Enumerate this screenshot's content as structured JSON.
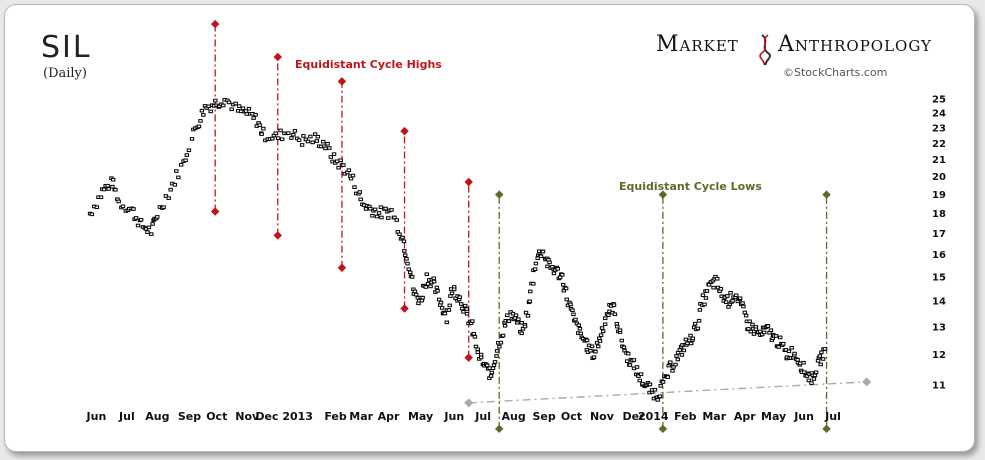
{
  "chart_data": {
    "type": "scatter",
    "title": "SIL",
    "subtitle": "(Daily)",
    "brand": {
      "left": "Market",
      "right": "Anthropology",
      "credit": "©StockCharts.com"
    },
    "y_scale": "log",
    "ylim": [
      10.5,
      25.7
    ],
    "yticks": [
      11,
      12,
      13,
      14,
      15,
      16,
      17,
      18,
      19,
      20,
      21,
      22,
      23,
      24,
      25
    ],
    "x_range_months": [
      0,
      25.3
    ],
    "x_ticks": [
      {
        "label": "Jun",
        "m": 0.2
      },
      {
        "label": "Jul",
        "m": 1.15
      },
      {
        "label": "Aug",
        "m": 2.1
      },
      {
        "label": "Sep",
        "m": 3.1
      },
      {
        "label": "Oct",
        "m": 3.95
      },
      {
        "label": "Nov",
        "m": 4.9
      },
      {
        "label": "Dec 2013",
        "m": 6.05
      },
      {
        "label": "Feb",
        "m": 7.65
      },
      {
        "label": "Mar",
        "m": 8.45
      },
      {
        "label": "Apr",
        "m": 9.3
      },
      {
        "label": "May",
        "m": 10.3
      },
      {
        "label": "Jun",
        "m": 11.35
      },
      {
        "label": "Jul",
        "m": 12.25
      },
      {
        "label": "Aug",
        "m": 13.2
      },
      {
        "label": "Sep",
        "m": 14.15
      },
      {
        "label": "Oct",
        "m": 15.0
      },
      {
        "label": "Nov",
        "m": 15.95
      },
      {
        "label": "Dec",
        "m": 16.95
      },
      {
        "label": "2014",
        "m": 17.55
      },
      {
        "label": "Feb",
        "m": 18.55
      },
      {
        "label": "Mar",
        "m": 19.45
      },
      {
        "label": "Apr",
        "m": 20.4
      },
      {
        "label": "May",
        "m": 21.3
      },
      {
        "label": "Jun",
        "m": 22.25
      },
      {
        "label": "Jul",
        "m": 23.15
      }
    ],
    "series": [
      {
        "name": "SIL daily close",
        "anchors": [
          [
            0.0,
            18.0
          ],
          [
            0.4,
            19.2
          ],
          [
            0.7,
            19.7
          ],
          [
            0.9,
            18.6
          ],
          [
            1.3,
            18.2
          ],
          [
            1.6,
            17.4
          ],
          [
            1.9,
            17.1
          ],
          [
            2.1,
            18.0
          ],
          [
            2.5,
            19.3
          ],
          [
            2.9,
            20.8
          ],
          [
            3.3,
            23.0
          ],
          [
            3.6,
            24.4
          ],
          [
            3.9,
            24.7
          ],
          [
            4.2,
            25.0
          ],
          [
            4.6,
            24.2
          ],
          [
            4.9,
            24.0
          ],
          [
            5.2,
            23.5
          ],
          [
            5.4,
            22.6
          ],
          [
            5.8,
            22.4
          ],
          [
            6.2,
            22.8
          ],
          [
            6.6,
            22.2
          ],
          [
            7.0,
            22.3
          ],
          [
            7.3,
            22.0
          ],
          [
            7.6,
            21.0
          ],
          [
            7.9,
            20.6
          ],
          [
            8.2,
            19.8
          ],
          [
            8.5,
            18.5
          ],
          [
            8.8,
            18.2
          ],
          [
            9.1,
            18.0
          ],
          [
            9.4,
            18.1
          ],
          [
            9.7,
            17.0
          ],
          [
            9.9,
            15.8
          ],
          [
            10.1,
            14.3
          ],
          [
            10.3,
            14.0
          ],
          [
            10.5,
            15.0
          ],
          [
            10.7,
            14.7
          ],
          [
            10.9,
            14.0
          ],
          [
            11.1,
            13.4
          ],
          [
            11.3,
            14.5
          ],
          [
            11.5,
            14.2
          ],
          [
            11.7,
            13.6
          ],
          [
            11.9,
            13.0
          ],
          [
            12.1,
            12.0
          ],
          [
            12.3,
            11.6
          ],
          [
            12.5,
            11.3
          ],
          [
            12.7,
            12.2
          ],
          [
            12.9,
            13.0
          ],
          [
            13.1,
            13.5
          ],
          [
            13.3,
            13.2
          ],
          [
            13.5,
            12.8
          ],
          [
            13.7,
            14.0
          ],
          [
            13.9,
            15.8
          ],
          [
            14.1,
            16.2
          ],
          [
            14.3,
            15.5
          ],
          [
            14.5,
            15.3
          ],
          [
            14.7,
            15.0
          ],
          [
            14.9,
            14.0
          ],
          [
            15.1,
            13.2
          ],
          [
            15.3,
            12.7
          ],
          [
            15.5,
            12.3
          ],
          [
            15.7,
            12.0
          ],
          [
            15.9,
            12.6
          ],
          [
            16.1,
            13.5
          ],
          [
            16.3,
            13.8
          ],
          [
            16.5,
            12.8
          ],
          [
            16.7,
            12.0
          ],
          [
            16.9,
            11.7
          ],
          [
            17.1,
            11.3
          ],
          [
            17.3,
            11.0
          ],
          [
            17.5,
            10.8
          ],
          [
            17.7,
            10.7
          ],
          [
            17.9,
            11.1
          ],
          [
            18.1,
            11.6
          ],
          [
            18.3,
            11.9
          ],
          [
            18.5,
            12.3
          ],
          [
            18.7,
            12.5
          ],
          [
            18.9,
            13.0
          ],
          [
            19.1,
            14.0
          ],
          [
            19.3,
            14.6
          ],
          [
            19.5,
            14.8
          ],
          [
            19.7,
            14.2
          ],
          [
            19.9,
            14.0
          ],
          [
            20.1,
            14.3
          ],
          [
            20.3,
            13.8
          ],
          [
            20.5,
            13.1
          ],
          [
            20.7,
            12.9
          ],
          [
            20.9,
            12.7
          ],
          [
            21.1,
            12.9
          ],
          [
            21.3,
            12.6
          ],
          [
            21.5,
            12.4
          ],
          [
            21.7,
            12.0
          ],
          [
            21.9,
            12.1
          ],
          [
            22.1,
            11.8
          ],
          [
            22.3,
            11.4
          ],
          [
            22.5,
            11.2
          ],
          [
            22.7,
            11.7
          ],
          [
            22.9,
            12.2
          ]
        ]
      }
    ],
    "cycle_highs": {
      "label": "Equidistant Cycle Highs",
      "color": "#c0141a",
      "lines": [
        {
          "m": 3.9,
          "from": 18.1,
          "to": 31.0
        },
        {
          "m": 5.85,
          "from": 16.9,
          "to": 28.2
        },
        {
          "m": 7.85,
          "from": 15.4,
          "to": 26.3
        },
        {
          "m": 9.8,
          "from": 13.7,
          "to": 22.8
        },
        {
          "m": 11.8,
          "from": 11.9,
          "to": 19.7
        }
      ]
    },
    "cycle_lows": {
      "label": "Equidistant Cycle Lows",
      "color": "#5a6b2a",
      "lines": [
        {
          "m": 12.75,
          "from": 9.7,
          "to": 19.0
        },
        {
          "m": 17.85,
          "from": 9.7,
          "to": 19.0
        },
        {
          "m": 22.95,
          "from": 9.7,
          "to": 19.0
        }
      ]
    },
    "trendline": {
      "color": "#aaaaaa",
      "from": [
        11.8,
        10.45
      ],
      "to": [
        24.2,
        11.1
      ]
    }
  }
}
